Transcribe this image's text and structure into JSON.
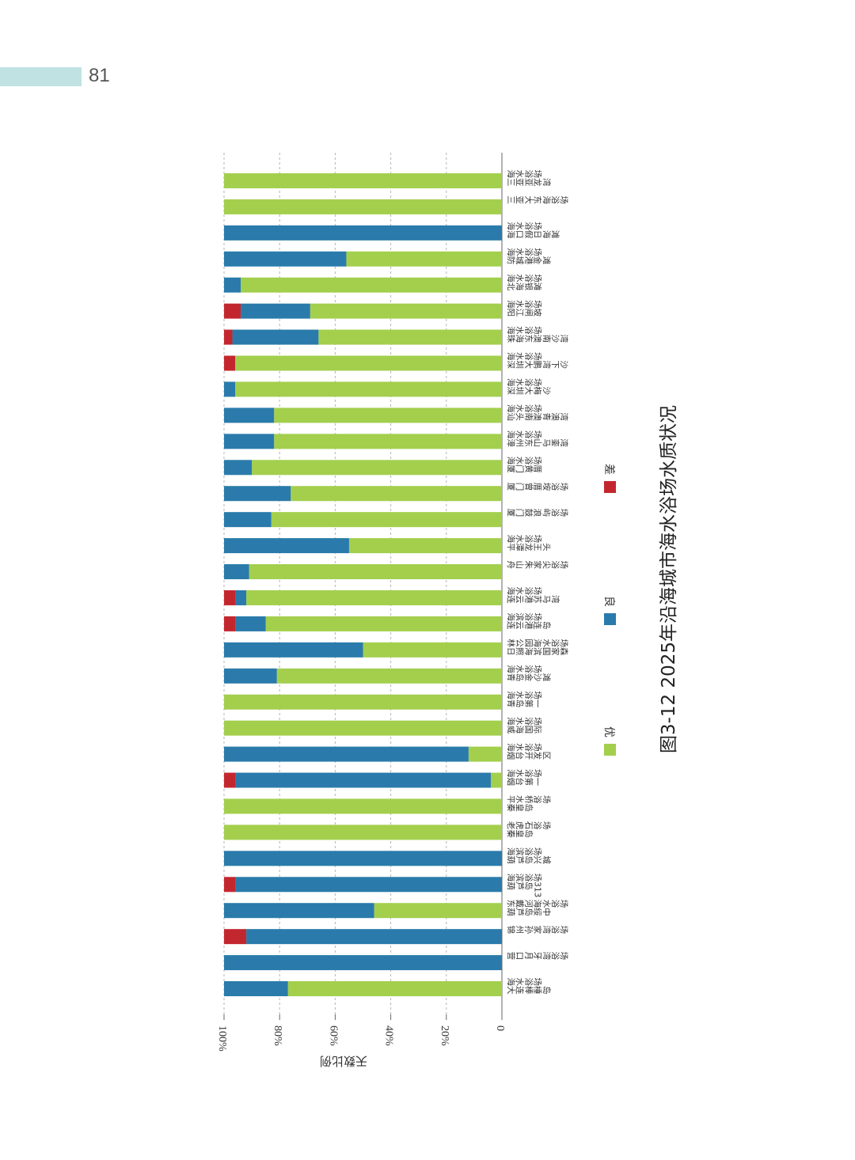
{
  "page": {
    "number": "81"
  },
  "chart_data": {
    "type": "bar",
    "orientation": "rotated-90",
    "stacked": true,
    "title": "图3-12 2025年沿海城市海水浴场水质状况",
    "ylabel": "天数比例",
    "ylim": [
      0,
      100
    ],
    "yticks": [
      "0",
      "20%",
      "40%",
      "60%",
      "80%",
      "100%"
    ],
    "grid": true,
    "legend_position": "right",
    "colors": {
      "优": "#a3cf4d",
      "良": "#2a7bab",
      "差": "#c3272e"
    },
    "categories": [
      "海三\n水亚\n浴亚\n场龙\n　湾",
      "三\n亚\n大\n东\n海\n浴\n场",
      "海海\n水口\n浴假\n场日\n　海\n　滩",
      "海防\n水城\n浴港\n场金\n　滩",
      "海北\n水海\n浴银\n场滩",
      "海阳\n水江\n浴闸\n场坡",
      "海珠\n水海\n浴东\n场澳\n　南\n　沙\n　湾",
      "海深\n水圳\n浴大\n场鹏\n　湾\n　下\n　沙",
      "海深\n水圳\n浴大\n场梅\n　沙",
      "海汕\n水头\n浴南\n场澳\n　青\n　澳\n　湾",
      "海漳\n水州\n浴东\n场山\n　马\n　銮\n　湾",
      "海厦\n水门\n浴黄\n场厝",
      "厦\n门\n曾\n厝\n垵\n浴\n场",
      "厦\n门\n鼓\n浪\n屿\n浴\n场",
      "海平\n水潭\n浴龙\n场王\n　头",
      "舟\n山\n朱\n家\n尖\n浴\n场",
      "海连\n水云\n浴港\n场苏\n　马\n　湾",
      "海连\n滨云\n浴港\n场连\n　岛",
      "林日\n公照\n园海\n海滨\n水国\n浴家\n场森",
      "海青\n水岛\n浴金\n场沙\n　滩",
      "海青\n水岛\n浴第\n场一",
      "海威\n水海\n浴国\n场际",
      "海烟\n水台\n浴开\n场发\n　区",
      "海烟\n水台\n浴第\n场一",
      "平秦\n水皇\n桥岛\n浴\n场",
      "老秦\n虎皇\n石岛\n浴\n场",
      "海葫\n滨芦\n浴岛\n场兴\n　城",
      "海葫\n滨芦\n浴岛\n场313",
      "东葫\n戴芦\n河岛\n海绥\n水中\n浴\n场",
      "锦\n州\n孙\n家\n湾\n浴\n场",
      "营\n口\n月\n牙\n湾\n浴\n场",
      "海大\n水连\n浴棒\n场棰\n　岛"
    ],
    "series": [
      {
        "name": "优",
        "values": [
          100,
          100,
          0,
          56,
          94,
          69,
          66,
          96,
          96,
          82,
          82,
          90,
          76,
          83,
          55,
          91,
          92,
          85,
          50,
          81,
          100,
          100,
          12,
          4,
          100,
          100,
          0,
          0,
          46,
          0,
          0,
          77
        ]
      },
      {
        "name": "良",
        "values": [
          0,
          0,
          100,
          44,
          6,
          25,
          31,
          0,
          4,
          18,
          18,
          10,
          24,
          17,
          45,
          9,
          4,
          11,
          50,
          19,
          0,
          0,
          88,
          92,
          0,
          0,
          100,
          96,
          54,
          92,
          100,
          23
        ]
      },
      {
        "name": "差",
        "values": [
          0,
          0,
          0,
          0,
          0,
          6,
          3,
          4,
          0,
          0,
          0,
          0,
          0,
          0,
          0,
          0,
          4,
          4,
          0,
          0,
          0,
          0,
          0,
          4,
          0,
          0,
          0,
          4,
          0,
          8,
          0,
          0
        ]
      }
    ]
  }
}
